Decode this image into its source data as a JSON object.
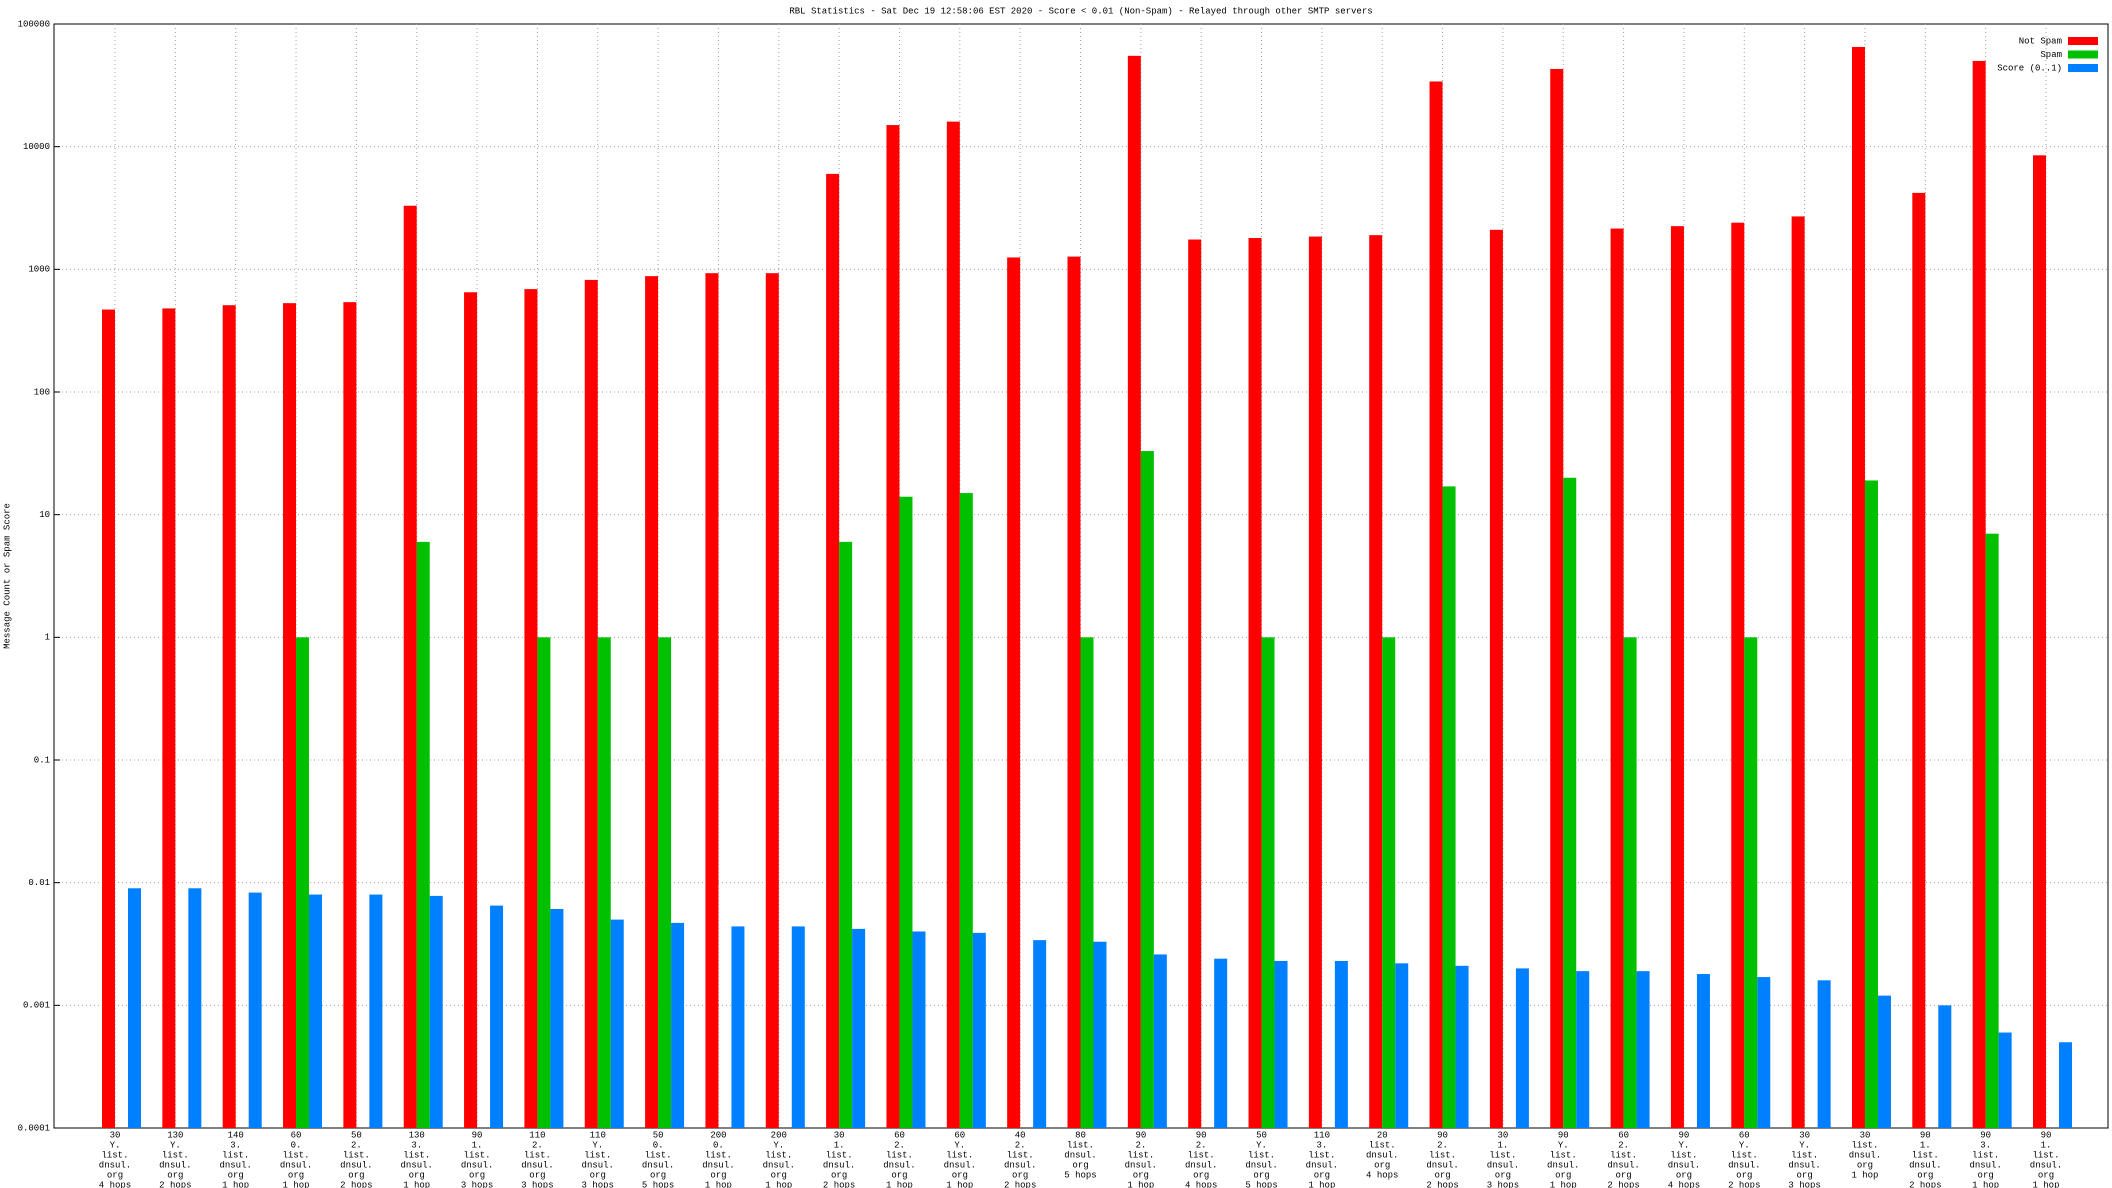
{
  "chart_data": {
    "type": "bar",
    "title": "RBL Statistics - Sat Dec 19 12:58:06 EST 2020 - Score < 0.01 (Non-Spam) - Relayed through other SMTP servers",
    "y_label": "Message Count or Spam Score",
    "log_scale": true,
    "grid": true,
    "legend": "top-right",
    "ylim": [
      0.0001,
      100000
    ],
    "yticks": [
      0.0001,
      0.001,
      0.01,
      0.1,
      1,
      10,
      100,
      1000,
      10000,
      100000
    ],
    "categories": [
      [
        "30",
        "Y.",
        "list.",
        "dnsul.",
        "org",
        "4 hops"
      ],
      [
        "130",
        "Y.",
        "list.",
        "dnsul.",
        "org",
        "2 hops"
      ],
      [
        "140",
        "3.",
        "list.",
        "dnsul.",
        "org",
        "1 hop"
      ],
      [
        "60",
        "0.",
        "list.",
        "dnsul.",
        "org",
        "1 hop"
      ],
      [
        "50",
        "2.",
        "list.",
        "dnsul.",
        "org",
        "2 hops"
      ],
      [
        "130",
        "3.",
        "list.",
        "dnsul.",
        "org",
        "1 hop"
      ],
      [
        "90",
        "1.",
        "list.",
        "dnsul.",
        "org",
        "3 hops"
      ],
      [
        "110",
        "2.",
        "list.",
        "dnsul.",
        "org",
        "3 hops"
      ],
      [
        "110",
        "Y.",
        "list.",
        "dnsul.",
        "org",
        "3 hops"
      ],
      [
        "50",
        "0.",
        "list.",
        "dnsul.",
        "org",
        "5 hops"
      ],
      [
        "200",
        "0.",
        "list.",
        "dnsul.",
        "org",
        "1 hop"
      ],
      [
        "200",
        "Y.",
        "list.",
        "dnsul.",
        "org",
        "1 hop"
      ],
      [
        "30",
        "1.",
        "list.",
        "dnsul.",
        "org",
        "2 hops"
      ],
      [
        "60",
        "2.",
        "list.",
        "dnsul.",
        "org",
        "1 hop"
      ],
      [
        "60",
        "Y.",
        "list.",
        "dnsul.",
        "org",
        "1 hop"
      ],
      [
        "40",
        "2.",
        "list.",
        "dnsul.",
        "org",
        "2 hops"
      ],
      [
        "80",
        "list.",
        "dnsul.",
        "org",
        "5 hops"
      ],
      [
        "90",
        "2.",
        "list.",
        "dnsul.",
        "org",
        "1 hop"
      ],
      [
        "90",
        "2.",
        "list.",
        "dnsul.",
        "org",
        "4 hops"
      ],
      [
        "50",
        "Y.",
        "list.",
        "dnsul.",
        "org",
        "5 hops"
      ],
      [
        "110",
        "3.",
        "list.",
        "dnsul.",
        "org",
        "1 hop"
      ],
      [
        "20",
        "list.",
        "dnsul.",
        "org",
        "4 hops"
      ],
      [
        "90",
        "2.",
        "list.",
        "dnsul.",
        "org",
        "2 hops"
      ],
      [
        "30",
        "1.",
        "list.",
        "dnsul.",
        "org",
        "3 hops"
      ],
      [
        "90",
        "Y.",
        "list.",
        "dnsul.",
        "org",
        "1 hop"
      ],
      [
        "60",
        "2.",
        "list.",
        "dnsul.",
        "org",
        "2 hops"
      ],
      [
        "90",
        "Y.",
        "list.",
        "dnsul.",
        "org",
        "4 hops"
      ],
      [
        "60",
        "Y.",
        "list.",
        "dnsul.",
        "org",
        "2 hops"
      ],
      [
        "30",
        "Y.",
        "list.",
        "dnsul.",
        "org",
        "3 hops"
      ],
      [
        "30",
        "list.",
        "dnsul.",
        "org",
        "1 hop"
      ],
      [
        "90",
        "1.",
        "list.",
        "dnsul.",
        "org",
        "2 hops"
      ],
      [
        "90",
        "3.",
        "list.",
        "dnsul.",
        "org",
        "1 hop"
      ],
      [
        "90",
        "1.",
        "list.",
        "dnsul.",
        "org",
        "1 hop"
      ]
    ],
    "series": [
      {
        "name": "Not Spam",
        "color": "#ff0000",
        "values": [
          470,
          480,
          510,
          530,
          540,
          3300,
          650,
          690,
          820,
          880,
          930,
          930,
          6000,
          15000,
          16000,
          1250,
          1270,
          55000,
          1750,
          1800,
          1850,
          1900,
          34000,
          2100,
          43000,
          2150,
          2250,
          2400,
          2700,
          65000,
          4200,
          50000,
          8500
        ]
      },
      {
        "name": "Spam",
        "color": "#00c000",
        "values": [
          null,
          null,
          null,
          1,
          null,
          6,
          null,
          1,
          1,
          1,
          null,
          null,
          6,
          14,
          15,
          null,
          1,
          33,
          null,
          1,
          null,
          1,
          17,
          null,
          20,
          1,
          null,
          1,
          null,
          19,
          null,
          7,
          null
        ]
      },
      {
        "name": "Score (0..1)",
        "color": "#0080ff",
        "values": [
          0.009,
          0.009,
          0.0083,
          0.008,
          0.008,
          0.0078,
          0.0065,
          0.0061,
          0.005,
          0.0047,
          0.0044,
          0.0044,
          0.0042,
          0.004,
          0.0039,
          0.0034,
          0.0033,
          0.0026,
          0.0024,
          0.0023,
          0.0023,
          0.0022,
          0.0021,
          0.002,
          0.0019,
          0.0019,
          0.0018,
          0.0017,
          0.0016,
          0.0012,
          0.001,
          0.0006,
          0.0005
        ]
      }
    ]
  }
}
